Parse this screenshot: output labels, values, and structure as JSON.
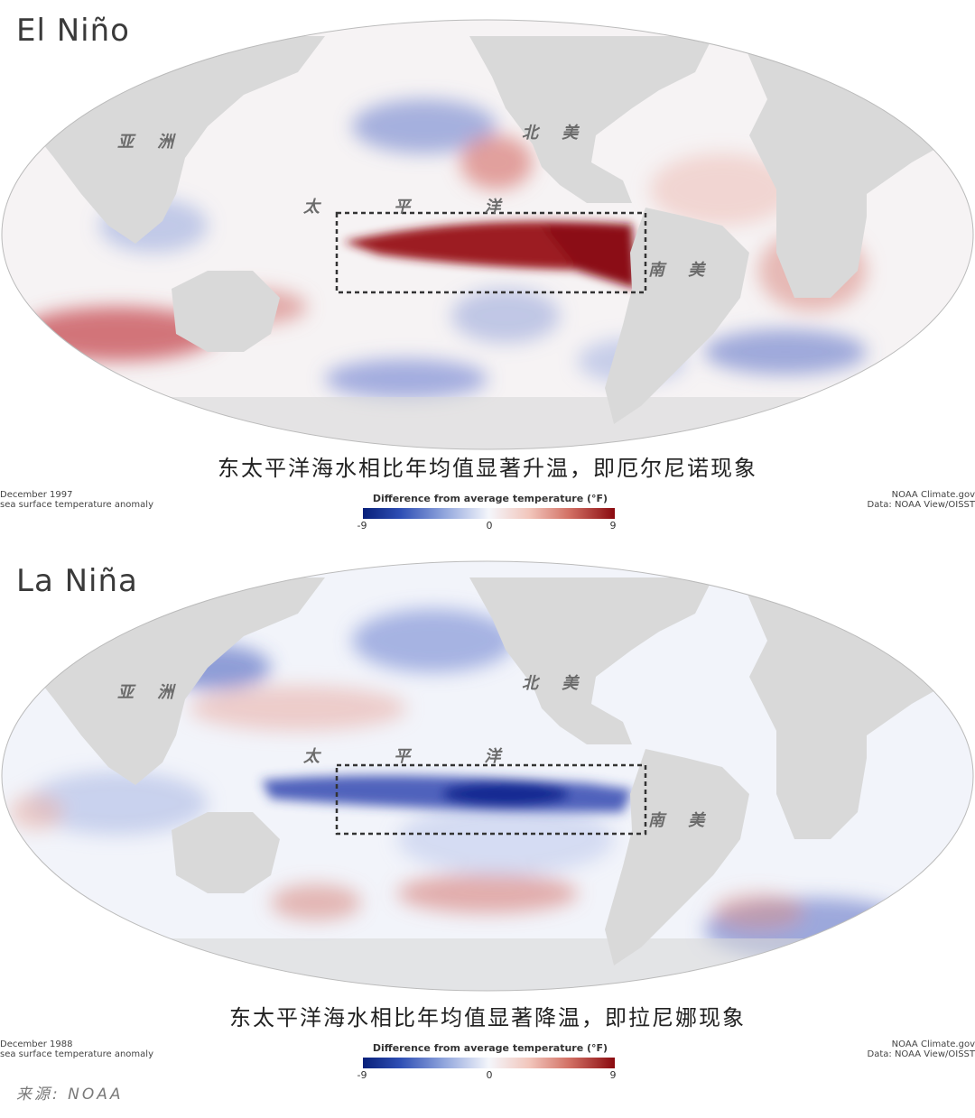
{
  "panels": [
    {
      "title": "El Niño",
      "labels": {
        "asia": "亚 洲",
        "north_america": "北 美",
        "pacific": "太 平 洋",
        "south_america": "南 美"
      },
      "caption": "东太平洋海水相比年均值显著升温，即厄尔尼诺现象",
      "date": "December 1997",
      "subtitle": "sea surface temperature anomaly",
      "credit": "NOAA Climate.gov",
      "data_source": "Data: NOAA View/OISST",
      "legend_title": "Difference from average temperature (°F)",
      "legend_ticks": [
        "-9",
        "0",
        "9"
      ],
      "anomaly": "warm"
    },
    {
      "title": "La Niña",
      "labels": {
        "asia": "亚 洲",
        "north_america": "北 美",
        "pacific": "太 平 洋",
        "south_america": "南 美"
      },
      "caption": "东太平洋海水相比年均值显著降温，即拉尼娜现象",
      "date": "December 1988",
      "subtitle": "sea surface temperature anomaly",
      "credit": "NOAA Climate.gov",
      "data_source": "Data: NOAA View/OISST",
      "legend_title": "Difference from average temperature (°F)",
      "legend_ticks": [
        "-9",
        "0",
        "9"
      ],
      "anomaly": "cool"
    }
  ],
  "source": "来源: NOAA",
  "colors": {
    "land": "#d9d9d9",
    "ocean": "#f5f6fa",
    "warm": "#8e1014",
    "cool": "#1c2f9a",
    "frame": "#333333"
  }
}
